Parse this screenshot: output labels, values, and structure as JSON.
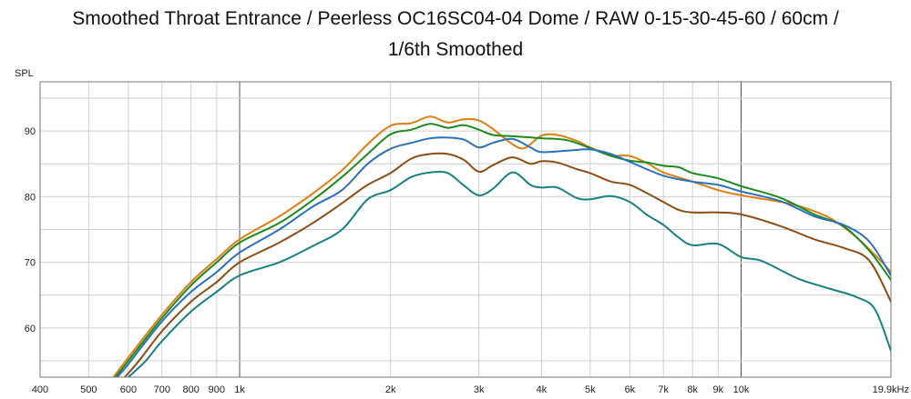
{
  "chart_data": {
    "type": "line",
    "title": "Smoothed Throat Entrance / Peerless OC16SC04-04 Dome / RAW 0-15-30-45-60 / 60cm /",
    "subtitle": "1/6th Smoothed",
    "ylabel": "SPL",
    "xlabel": "",
    "xscale": "log",
    "xlim": [
      400,
      19900
    ],
    "ylim": [
      52.5,
      97.5
    ],
    "grid": true,
    "x_ticks": [
      {
        "value": 400,
        "label": "400"
      },
      {
        "value": 500,
        "label": "500"
      },
      {
        "value": 600,
        "label": "600"
      },
      {
        "value": 700,
        "label": "700"
      },
      {
        "value": 800,
        "label": "800"
      },
      {
        "value": 900,
        "label": "900"
      },
      {
        "value": 1000,
        "label": "1k"
      },
      {
        "value": 2000,
        "label": "2k"
      },
      {
        "value": 3000,
        "label": "3k"
      },
      {
        "value": 4000,
        "label": "4k"
      },
      {
        "value": 5000,
        "label": "5k"
      },
      {
        "value": 6000,
        "label": "6k"
      },
      {
        "value": 7000,
        "label": "7k"
      },
      {
        "value": 8000,
        "label": "8k"
      },
      {
        "value": 9000,
        "label": "9k"
      },
      {
        "value": 10000,
        "label": "10k"
      },
      {
        "value": 19900,
        "label": "19.9kHz"
      }
    ],
    "y_ticks": [
      {
        "value": 60,
        "label": "60"
      },
      {
        "value": 70,
        "label": "70"
      },
      {
        "value": 80,
        "label": "80"
      },
      {
        "value": 90,
        "label": "90"
      }
    ],
    "series": [
      {
        "color": "#e07d10",
        "points": [
          [
            560,
            52.5
          ],
          [
            600,
            55.5
          ],
          [
            700,
            62
          ],
          [
            800,
            67
          ],
          [
            900,
            70.5
          ],
          [
            1000,
            73.5
          ],
          [
            1200,
            77
          ],
          [
            1400,
            80.5
          ],
          [
            1600,
            84
          ],
          [
            1800,
            88
          ],
          [
            2000,
            90.8
          ],
          [
            2200,
            91.2
          ],
          [
            2400,
            92.2
          ],
          [
            2600,
            91.3
          ],
          [
            2800,
            91.8
          ],
          [
            3000,
            91.6
          ],
          [
            3200,
            90.3
          ],
          [
            3500,
            88
          ],
          [
            3700,
            87.4
          ],
          [
            4000,
            89.3
          ],
          [
            4300,
            89.4
          ],
          [
            4700,
            88.5
          ],
          [
            5000,
            87.5
          ],
          [
            5500,
            86.3
          ],
          [
            6000,
            86.2
          ],
          [
            6500,
            85.1
          ],
          [
            7000,
            83.7
          ],
          [
            8000,
            82.3
          ],
          [
            9000,
            81
          ],
          [
            10000,
            80.2
          ],
          [
            12000,
            79.2
          ],
          [
            13000,
            78.6
          ],
          [
            15000,
            76.8
          ],
          [
            17000,
            73.8
          ],
          [
            19000,
            70.2
          ],
          [
            19900,
            68.5
          ]
        ]
      },
      {
        "color": "#1c8a1c",
        "points": [
          [
            565,
            52.5
          ],
          [
            600,
            55
          ],
          [
            700,
            61.5
          ],
          [
            800,
            66.5
          ],
          [
            900,
            70
          ],
          [
            1000,
            73
          ],
          [
            1200,
            76
          ],
          [
            1400,
            79.5
          ],
          [
            1600,
            83
          ],
          [
            1800,
            86.5
          ],
          [
            2000,
            89.5
          ],
          [
            2200,
            90.2
          ],
          [
            2400,
            91.1
          ],
          [
            2600,
            90.5
          ],
          [
            2800,
            90.9
          ],
          [
            3000,
            90.2
          ],
          [
            3200,
            89.4
          ],
          [
            3500,
            89.2
          ],
          [
            4000,
            88.9
          ],
          [
            4500,
            88.6
          ],
          [
            5000,
            87.4
          ],
          [
            5500,
            86.2
          ],
          [
            6000,
            85.5
          ],
          [
            6500,
            85.2
          ],
          [
            7000,
            84.7
          ],
          [
            7500,
            84.5
          ],
          [
            8000,
            83.6
          ],
          [
            9000,
            82.8
          ],
          [
            10000,
            81.6
          ],
          [
            12000,
            79.8
          ],
          [
            14000,
            77.3
          ],
          [
            16000,
            75.5
          ],
          [
            18000,
            71.8
          ],
          [
            19900,
            67.3
          ]
        ]
      },
      {
        "color": "#2a70be",
        "points": [
          [
            570,
            52.5
          ],
          [
            600,
            54.5
          ],
          [
            700,
            61
          ],
          [
            800,
            65.5
          ],
          [
            900,
            68.5
          ],
          [
            1000,
            71.5
          ],
          [
            1200,
            75
          ],
          [
            1400,
            78.5
          ],
          [
            1600,
            81
          ],
          [
            1800,
            85
          ],
          [
            2000,
            87.3
          ],
          [
            2200,
            88.2
          ],
          [
            2400,
            88.9
          ],
          [
            2600,
            89
          ],
          [
            2800,
            88.7
          ],
          [
            3000,
            87.5
          ],
          [
            3200,
            88.2
          ],
          [
            3500,
            88.8
          ],
          [
            3800,
            87.5
          ],
          [
            4000,
            86.8
          ],
          [
            4500,
            87
          ],
          [
            5000,
            87.2
          ],
          [
            5500,
            86.5
          ],
          [
            6000,
            85.3
          ],
          [
            7000,
            83.2
          ],
          [
            8000,
            82.3
          ],
          [
            9000,
            81.8
          ],
          [
            10000,
            80.8
          ],
          [
            12000,
            79.3
          ],
          [
            14000,
            77
          ],
          [
            16000,
            75.7
          ],
          [
            18000,
            73.2
          ],
          [
            19900,
            68
          ]
        ]
      },
      {
        "color": "#8c4e14",
        "points": [
          [
            590,
            52.5
          ],
          [
            630,
            55
          ],
          [
            700,
            59.5
          ],
          [
            800,
            64
          ],
          [
            900,
            67
          ],
          [
            1000,
            70
          ],
          [
            1200,
            73
          ],
          [
            1400,
            76
          ],
          [
            1600,
            79
          ],
          [
            1800,
            81.8
          ],
          [
            2000,
            83.6
          ],
          [
            2200,
            85.8
          ],
          [
            2400,
            86.5
          ],
          [
            2600,
            86.5
          ],
          [
            2800,
            85.6
          ],
          [
            3000,
            83.8
          ],
          [
            3200,
            84.8
          ],
          [
            3500,
            86
          ],
          [
            3800,
            85
          ],
          [
            4000,
            85.4
          ],
          [
            4300,
            85.2
          ],
          [
            4700,
            84.2
          ],
          [
            5000,
            83.6
          ],
          [
            5500,
            82.3
          ],
          [
            6000,
            81.8
          ],
          [
            6500,
            80.5
          ],
          [
            7000,
            79.2
          ],
          [
            7500,
            78
          ],
          [
            8000,
            77.6
          ],
          [
            9000,
            77.6
          ],
          [
            10000,
            77.3
          ],
          [
            12000,
            75.5
          ],
          [
            14000,
            73.5
          ],
          [
            16000,
            72.2
          ],
          [
            18000,
            70.3
          ],
          [
            19900,
            64
          ]
        ]
      },
      {
        "color": "#178080",
        "points": [
          [
            600,
            52.5
          ],
          [
            650,
            55
          ],
          [
            700,
            58
          ],
          [
            800,
            62.5
          ],
          [
            900,
            65.5
          ],
          [
            1000,
            68
          ],
          [
            1200,
            70
          ],
          [
            1400,
            72.5
          ],
          [
            1600,
            75
          ],
          [
            1800,
            79.6
          ],
          [
            2000,
            81
          ],
          [
            2200,
            83
          ],
          [
            2400,
            83.7
          ],
          [
            2600,
            83.6
          ],
          [
            2800,
            81.7
          ],
          [
            3000,
            80.2
          ],
          [
            3200,
            81.2
          ],
          [
            3500,
            83.7
          ],
          [
            3800,
            81.8
          ],
          [
            4000,
            81.4
          ],
          [
            4300,
            81.4
          ],
          [
            4700,
            79.8
          ],
          [
            5000,
            79.6
          ],
          [
            5500,
            80.1
          ],
          [
            6000,
            79.2
          ],
          [
            6500,
            77.2
          ],
          [
            7000,
            75.7
          ],
          [
            7500,
            73.8
          ],
          [
            8000,
            72.6
          ],
          [
            9000,
            72.8
          ],
          [
            10000,
            70.8
          ],
          [
            11000,
            70.2
          ],
          [
            13000,
            67.5
          ],
          [
            15000,
            66
          ],
          [
            17000,
            64.7
          ],
          [
            18500,
            62.8
          ],
          [
            19900,
            56.5
          ]
        ]
      }
    ]
  }
}
